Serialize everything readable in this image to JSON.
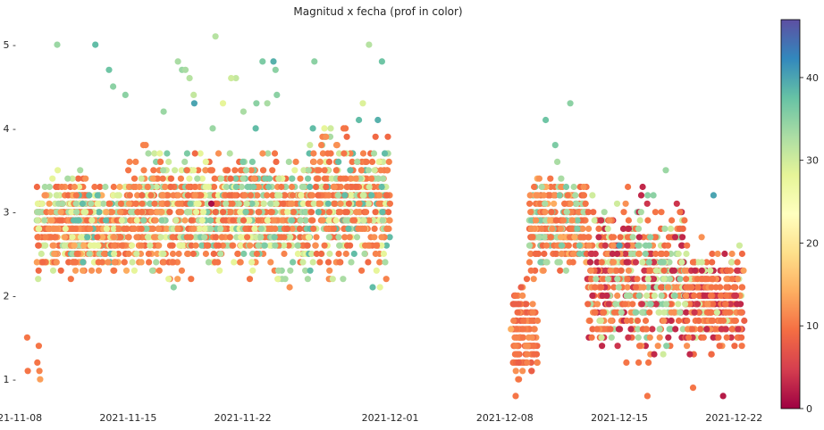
{
  "chart_data": {
    "type": "scatter",
    "title": "Magnitud x fecha (prof in color)",
    "xlabel": "",
    "ylabel": "",
    "x_range": [
      "2021-11-07T16:00",
      "2021-12-24T00:00"
    ],
    "ylim": [
      0.65,
      5.3
    ],
    "x_ticks": [
      "2021-11-08",
      "2021-11-15",
      "2021-11-22",
      "2021-12-01",
      "2021-12-08",
      "2021-12-15",
      "2021-12-22"
    ],
    "y_ticks": [
      1,
      2,
      3,
      4,
      5
    ],
    "colorbar": {
      "colormap": "Spectral",
      "range": [
        0,
        47
      ],
      "ticks": [
        0,
        10,
        20,
        30,
        40
      ],
      "colors": [
        "#9e0142",
        "#d53e4f",
        "#f46d43",
        "#fdae61",
        "#fee08b",
        "#ffffbf",
        "#e6f598",
        "#abdda4",
        "#66c2a5",
        "#3288bd",
        "#5e4fa2"
      ]
    },
    "grid": false,
    "legend": "none",
    "points": [
      {
        "x": "2021-11-08T20:00",
        "y": 1.5,
        "depth": 10
      },
      {
        "x": "2021-11-08T21:00",
        "y": 1.1,
        "depth": 10
      },
      {
        "x": "2021-11-09T13:00",
        "y": 1.4,
        "depth": 10
      },
      {
        "x": "2021-11-09T11:00",
        "y": 1.2,
        "depth": 10
      },
      {
        "x": "2021-11-09T14:00",
        "y": 1.1,
        "depth": 11
      },
      {
        "x": "2021-11-09T15:00",
        "y": 1.0,
        "depth": 13
      },
      {
        "x": "2021-11-10T16:00",
        "y": 5.0,
        "depth": 34
      },
      {
        "x": "2021-11-13T00:00",
        "y": 5.0,
        "depth": 38
      },
      {
        "x": "2021-11-13T20:00",
        "y": 4.7,
        "depth": 37
      },
      {
        "x": "2021-11-14T02:00",
        "y": 4.5,
        "depth": 35
      },
      {
        "x": "2021-11-14T20:00",
        "y": 4.4,
        "depth": 35
      },
      {
        "x": "2021-11-17T04:00",
        "y": 4.2,
        "depth": 34
      },
      {
        "x": "2021-11-18T07:00",
        "y": 4.7,
        "depth": 34
      },
      {
        "x": "2021-11-18T12:00",
        "y": 4.7,
        "depth": 33
      },
      {
        "x": "2021-11-18T18:00",
        "y": 4.6,
        "depth": 32
      },
      {
        "x": "2021-11-18T01:00",
        "y": 4.8,
        "depth": 33
      },
      {
        "x": "2021-11-19T00:00",
        "y": 4.4,
        "depth": 31
      },
      {
        "x": "2021-11-19T01:00",
        "y": 4.3,
        "depth": 40
      },
      {
        "x": "2021-11-20T08:00",
        "y": 5.1,
        "depth": 32
      },
      {
        "x": "2021-11-20T19:00",
        "y": 4.3,
        "depth": 28
      },
      {
        "x": "2021-11-21T14:00",
        "y": 4.6,
        "depth": 31
      },
      {
        "x": "2021-11-21T07:00",
        "y": 4.6,
        "depth": 30
      },
      {
        "x": "2021-11-22T01:00",
        "y": 4.2,
        "depth": 33
      },
      {
        "x": "2021-11-22T20:00",
        "y": 4.3,
        "depth": 35
      },
      {
        "x": "2021-11-23T05:00",
        "y": 4.8,
        "depth": 36
      },
      {
        "x": "2021-11-23T12:00",
        "y": 4.3,
        "depth": 33
      },
      {
        "x": "2021-11-23T21:00",
        "y": 4.8,
        "depth": 39
      },
      {
        "x": "2021-11-24T00:00",
        "y": 4.7,
        "depth": 35
      },
      {
        "x": "2021-11-24T02:00",
        "y": 4.4,
        "depth": 35
      },
      {
        "x": "2021-11-26T09:00",
        "y": 4.8,
        "depth": 35
      },
      {
        "x": "2021-11-29T17:00",
        "y": 5.0,
        "depth": 32
      },
      {
        "x": "2021-11-29T08:00",
        "y": 4.3,
        "depth": 29
      },
      {
        "x": "2021-11-30T06:00",
        "y": 4.1,
        "depth": 39
      },
      {
        "x": "2021-11-30T12:00",
        "y": 4.8,
        "depth": 37
      },
      {
        "x": "2021-11-20T04:00",
        "y": 4.0,
        "depth": 34
      },
      {
        "x": "2021-11-22T19:00",
        "y": 4.0,
        "depth": 38
      },
      {
        "x": "2021-11-17T09:00",
        "y": 3.7,
        "depth": 36
      },
      {
        "x": "2021-11-20T02:00",
        "y": 3.1,
        "depth": 1
      },
      {
        "x": "2021-12-08T09:00",
        "y": 1.6,
        "depth": 14
      },
      {
        "x": "2021-12-08T16:00",
        "y": 0.8,
        "depth": 10
      },
      {
        "x": "2021-12-10T12:00",
        "y": 4.1,
        "depth": 37
      },
      {
        "x": "2021-12-11T02:00",
        "y": 3.8,
        "depth": 36
      },
      {
        "x": "2021-12-11T05:00",
        "y": 3.6,
        "depth": 33
      },
      {
        "x": "2021-12-12T00:00",
        "y": 4.3,
        "depth": 35
      },
      {
        "x": "2021-12-15T00:00",
        "y": 2.6,
        "depth": 40
      },
      {
        "x": "2021-12-16T17:00",
        "y": 0.8,
        "depth": 10
      },
      {
        "x": "2021-12-17T20:00",
        "y": 3.5,
        "depth": 34
      },
      {
        "x": "2021-12-19T12:00",
        "y": 0.9,
        "depth": 10
      },
      {
        "x": "2021-12-20T18:00",
        "y": 3.2,
        "depth": 40
      },
      {
        "x": "2021-12-21T08:00",
        "y": 0.8,
        "depth": 2
      },
      {
        "x": "2021-12-22T14:00",
        "y": 2.3,
        "depth": 13
      },
      {
        "x": "2021-12-22T15:00",
        "y": 1.7,
        "depth": 8
      }
    ],
    "clusters": [
      {
        "x_start": "2021-11-09T10:00",
        "x_end": "2021-11-12T12:00",
        "y_min": 2.1,
        "y_max": 3.6,
        "depths": [
          9,
          11,
          13,
          10,
          33,
          30,
          10,
          12,
          28,
          9
        ]
      },
      {
        "x_start": "2021-11-11T12:00",
        "x_end": "2021-11-15T00:00",
        "y_min": 2.1,
        "y_max": 3.5,
        "depths": [
          10,
          12,
          9,
          33,
          38,
          11,
          14,
          28,
          10,
          29
        ]
      },
      {
        "x_start": "2021-11-15T00:00",
        "x_end": "2021-11-18T12:00",
        "y_min": 2.0,
        "y_max": 3.9,
        "depths": [
          10,
          11,
          33,
          12,
          9,
          30,
          35,
          10,
          13,
          28,
          11
        ]
      },
      {
        "x_start": "2021-11-18T12:00",
        "x_end": "2021-11-22T00:00",
        "y_min": 2.1,
        "y_max": 3.9,
        "depths": [
          10,
          9,
          33,
          11,
          32,
          28,
          12,
          10,
          36,
          9
        ]
      },
      {
        "x_start": "2021-11-22T00:00",
        "x_end": "2021-11-26T00:00",
        "y_min": 2.0,
        "y_max": 3.9,
        "depths": [
          10,
          33,
          36,
          11,
          30,
          12,
          34,
          9,
          28,
          10
        ]
      },
      {
        "x_start": "2021-11-26T00:00",
        "x_end": "2021-12-01T00:00",
        "y_min": 2.0,
        "y_max": 4.2,
        "depths": [
          10,
          11,
          9,
          33,
          12,
          30,
          10,
          38,
          28,
          11
        ]
      },
      {
        "x_start": "2021-12-08T12:00",
        "x_end": "2021-12-10T00:00",
        "y_min": 0.8,
        "y_max": 2.4,
        "depths": [
          9,
          10,
          11,
          8,
          12,
          10
        ]
      },
      {
        "x_start": "2021-12-09T12:00",
        "x_end": "2021-12-13T00:00",
        "y_min": 2.1,
        "y_max": 3.6,
        "depths": [
          10,
          9,
          12,
          33,
          11,
          36,
          10,
          14
        ]
      },
      {
        "x_start": "2021-12-13T00:00",
        "x_end": "2021-12-16T00:00",
        "y_min": 1.0,
        "y_max": 3.4,
        "depths": [
          10,
          9,
          4,
          33,
          12,
          3,
          30,
          10
        ]
      },
      {
        "x_start": "2021-12-16T00:00",
        "x_end": "2021-12-19T00:00",
        "y_min": 1.0,
        "y_max": 3.4,
        "depths": [
          10,
          3,
          9,
          33,
          30,
          12,
          4,
          35,
          10
        ]
      },
      {
        "x_start": "2021-12-19T00:00",
        "x_end": "2021-12-22T12:00",
        "y_min": 1.1,
        "y_max": 2.8,
        "depths": [
          9,
          10,
          3,
          12,
          30,
          4,
          10
        ]
      }
    ]
  }
}
